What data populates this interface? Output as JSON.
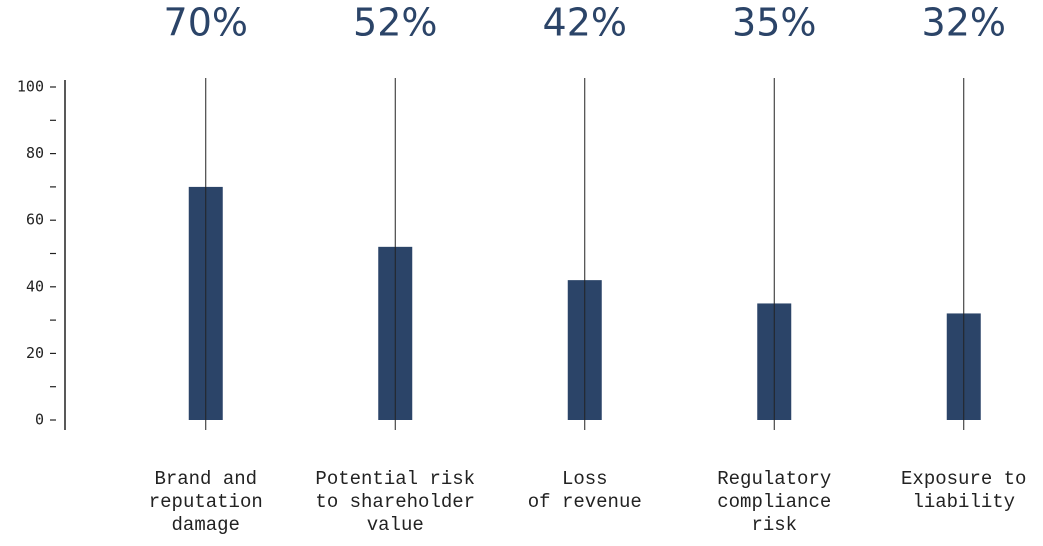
{
  "chart_data": {
    "type": "bar",
    "categories": [
      "Brand and\nreputation\ndamage",
      "Potential risk\nto shareholder\nvalue",
      "Loss\nof revenue",
      "Regulatory\ncompliance\nrisk",
      "Exposure to\nliability"
    ],
    "values": [
      70,
      52,
      42,
      35,
      32
    ],
    "value_labels": [
      "70%",
      "52%",
      "42%",
      "35%",
      "32%"
    ],
    "color": "#2b4468",
    "ylim": [
      0,
      100
    ],
    "yticks": [
      0,
      20,
      40,
      60,
      80,
      100
    ],
    "yminor_ticks": [
      10,
      30,
      50,
      70,
      90
    ]
  }
}
